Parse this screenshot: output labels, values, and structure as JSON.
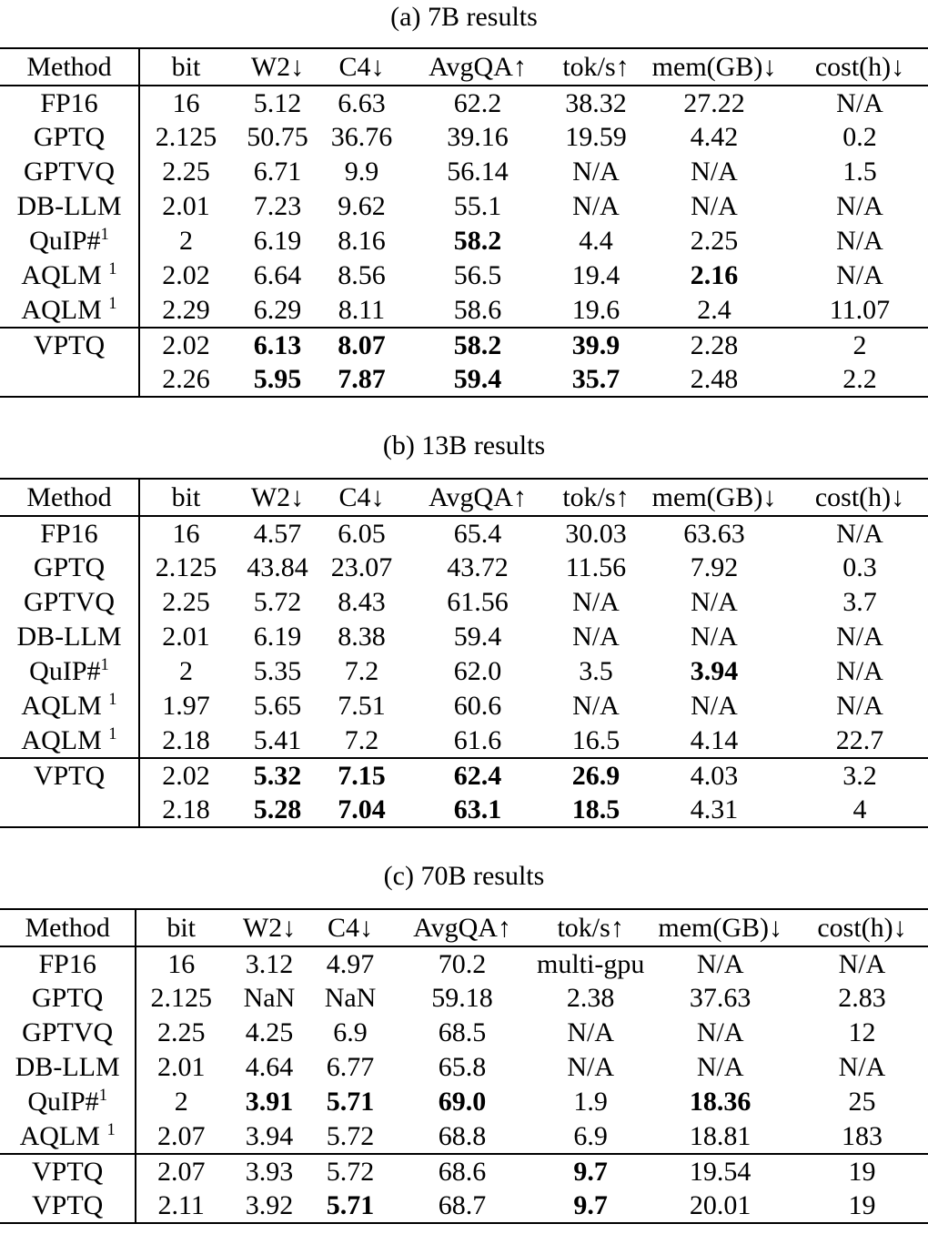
{
  "document": {
    "background_color": "#ffffff",
    "text_color": "#000000"
  },
  "tables": [
    {
      "id": "7b",
      "caption": "(a) 7B results",
      "headers": [
        "Method",
        "bit",
        "W2↓",
        "C4↓",
        "AvgQA↑",
        "tok/s↑",
        "mem(GB)↓",
        "cost(h)↓"
      ],
      "rows": [
        {
          "method": "FP16",
          "sup": "",
          "cells": [
            "16",
            "5.12",
            "6.63",
            "62.2",
            "38.32",
            "27.22",
            "N/A"
          ],
          "bold": [],
          "group": "baseline"
        },
        {
          "method": "GPTQ",
          "sup": "",
          "cells": [
            "2.125",
            "50.75",
            "36.76",
            "39.16",
            "19.59",
            "4.42",
            "0.2"
          ],
          "bold": [],
          "group": "baseline"
        },
        {
          "method": "GPTVQ",
          "sup": "",
          "cells": [
            "2.25",
            "6.71",
            "9.9",
            "56.14",
            "N/A",
            "N/A",
            "1.5"
          ],
          "bold": [],
          "group": "baseline"
        },
        {
          "method": "DB-LLM",
          "sup": "",
          "cells": [
            "2.01",
            "7.23",
            "9.62",
            "55.1",
            "N/A",
            "N/A",
            "N/A"
          ],
          "bold": [],
          "group": "baseline"
        },
        {
          "method": "QuIP#",
          "sup": "1",
          "cells": [
            "2",
            "6.19",
            "8.16",
            "58.2",
            "4.4",
            "2.25",
            "N/A"
          ],
          "bold": [
            3
          ],
          "group": "baseline"
        },
        {
          "method": "AQLM ",
          "sup": "1",
          "cells": [
            "2.02",
            "6.64",
            "8.56",
            "56.5",
            "19.4",
            "2.16",
            "N/A"
          ],
          "bold": [
            5
          ],
          "group": "baseline"
        },
        {
          "method": "AQLM ",
          "sup": "1",
          "cells": [
            "2.29",
            "6.29",
            "8.11",
            "58.6",
            "19.6",
            "2.4",
            "11.07"
          ],
          "bold": [],
          "group": "baseline"
        },
        {
          "method": "VPTQ",
          "sup": "",
          "cells": [
            "2.02",
            "6.13",
            "8.07",
            "58.2",
            "39.9",
            "2.28",
            "2"
          ],
          "bold": [
            1,
            2,
            3,
            4
          ],
          "group": "vptq"
        },
        {
          "method": "",
          "sup": "",
          "cells": [
            "2.26",
            "5.95",
            "7.87",
            "59.4",
            "35.7",
            "2.48",
            "2.2"
          ],
          "bold": [
            1,
            2,
            3,
            4
          ],
          "group": "vptq"
        }
      ]
    },
    {
      "id": "13b",
      "caption": "(b) 13B results",
      "headers": [
        "Method",
        "bit",
        "W2↓",
        "C4↓",
        "AvgQA↑",
        "tok/s↑",
        "mem(GB)↓",
        "cost(h)↓"
      ],
      "rows": [
        {
          "method": "FP16",
          "sup": "",
          "cells": [
            "16",
            "4.57",
            "6.05",
            "65.4",
            "30.03",
            "63.63",
            "N/A"
          ],
          "bold": [],
          "group": "baseline"
        },
        {
          "method": "GPTQ",
          "sup": "",
          "cells": [
            "2.125",
            "43.84",
            "23.07",
            "43.72",
            "11.56",
            "7.92",
            "0.3"
          ],
          "bold": [],
          "group": "baseline"
        },
        {
          "method": "GPTVQ",
          "sup": "",
          "cells": [
            "2.25",
            "5.72",
            "8.43",
            "61.56",
            "N/A",
            "N/A",
            "3.7"
          ],
          "bold": [],
          "group": "baseline"
        },
        {
          "method": "DB-LLM",
          "sup": "",
          "cells": [
            "2.01",
            "6.19",
            "8.38",
            "59.4",
            "N/A",
            "N/A",
            "N/A"
          ],
          "bold": [],
          "group": "baseline"
        },
        {
          "method": "QuIP#",
          "sup": "1",
          "cells": [
            "2",
            "5.35",
            "7.2",
            "62.0",
            "3.5",
            "3.94",
            "N/A"
          ],
          "bold": [
            5
          ],
          "group": "baseline"
        },
        {
          "method": "AQLM ",
          "sup": "1",
          "cells": [
            "1.97",
            "5.65",
            "7.51",
            "60.6",
            "N/A",
            "N/A",
            "N/A"
          ],
          "bold": [],
          "group": "baseline"
        },
        {
          "method": "AQLM ",
          "sup": "1",
          "cells": [
            "2.18",
            "5.41",
            "7.2",
            "61.6",
            "16.5",
            "4.14",
            "22.7"
          ],
          "bold": [],
          "group": "baseline"
        },
        {
          "method": "VPTQ",
          "sup": "",
          "cells": [
            "2.02",
            "5.32",
            "7.15",
            "62.4",
            "26.9",
            "4.03",
            "3.2"
          ],
          "bold": [
            1,
            2,
            3,
            4
          ],
          "group": "vptq"
        },
        {
          "method": "",
          "sup": "",
          "cells": [
            "2.18",
            "5.28",
            "7.04",
            "63.1",
            "18.5",
            "4.31",
            "4"
          ],
          "bold": [
            1,
            2,
            3,
            4
          ],
          "group": "vptq"
        }
      ]
    },
    {
      "id": "70b",
      "caption": "(c) 70B results",
      "headers": [
        "Method",
        "bit",
        "W2↓",
        "C4↓",
        "AvgQA↑",
        "tok/s↑",
        "mem(GB)↓",
        "cost(h)↓"
      ],
      "rows": [
        {
          "method": "FP16",
          "sup": "",
          "cells": [
            "16",
            "3.12",
            "4.97",
            "70.2",
            "multi-gpu",
            "N/A",
            "N/A"
          ],
          "bold": [],
          "group": "baseline"
        },
        {
          "method": "GPTQ",
          "sup": "",
          "cells": [
            "2.125",
            "NaN",
            "NaN",
            "59.18",
            "2.38",
            "37.63",
            "2.83"
          ],
          "bold": [],
          "group": "baseline"
        },
        {
          "method": "GPTVQ",
          "sup": "",
          "cells": [
            "2.25",
            "4.25",
            "6.9",
            "68.5",
            "N/A",
            "N/A",
            "12"
          ],
          "bold": [],
          "group": "baseline"
        },
        {
          "method": "DB-LLM",
          "sup": "",
          "cells": [
            "2.01",
            "4.64",
            "6.77",
            "65.8",
            "N/A",
            "N/A",
            "N/A"
          ],
          "bold": [],
          "group": "baseline"
        },
        {
          "method": "QuIP#",
          "sup": "1",
          "cells": [
            "2",
            "3.91",
            "5.71",
            "69.0",
            "1.9",
            "18.36",
            "25"
          ],
          "bold": [
            1,
            2,
            3,
            5
          ],
          "group": "baseline"
        },
        {
          "method": "AQLM ",
          "sup": "1",
          "cells": [
            "2.07",
            "3.94",
            "5.72",
            "68.8",
            "6.9",
            "18.81",
            "183"
          ],
          "bold": [],
          "group": "baseline"
        },
        {
          "method": "VPTQ",
          "sup": "",
          "cells": [
            "2.07",
            "3.93",
            "5.72",
            "68.6",
            "9.7",
            "19.54",
            "19"
          ],
          "bold": [
            4
          ],
          "group": "vptq"
        },
        {
          "method": "VPTQ",
          "sup": "",
          "cells": [
            "2.11",
            "3.92",
            "5.71",
            "68.7",
            "9.7",
            "20.01",
            "19"
          ],
          "bold": [
            2,
            4
          ],
          "group": "vptq"
        }
      ]
    }
  ]
}
